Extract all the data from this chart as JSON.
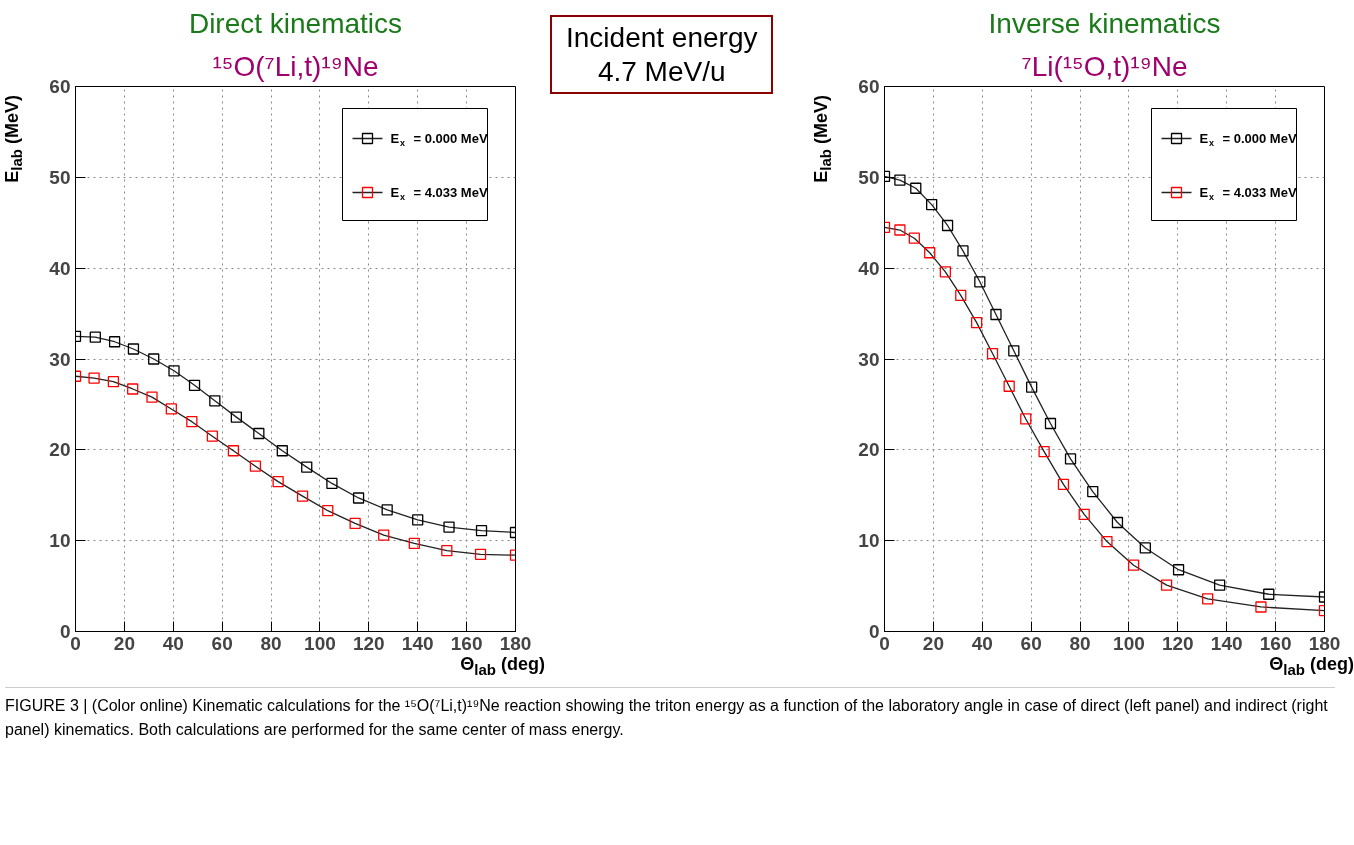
{
  "chart_data": [
    {
      "type": "line",
      "title": "Direct kinematics",
      "subtitle": "¹⁵O(⁷Li,t)¹⁹Ne",
      "xlabel": "Θ$_{lab}$ (deg)",
      "ylabel": "E$_{lab}$ (MeV)",
      "xlim": [
        0,
        180
      ],
      "ylim": [
        0,
        60
      ],
      "xticks": [
        0,
        20,
        40,
        60,
        80,
        100,
        120,
        140,
        160,
        180
      ],
      "yticks": [
        0,
        10,
        20,
        30,
        40,
        50,
        60
      ],
      "grid": true,
      "legend": "top right",
      "marker": "square",
      "line_style": "solid",
      "annotations": [
        "Incident energy\n4.7 MeV/u"
      ],
      "series": [
        {
          "name": "E$_{x}$ = 0.000 MeV",
          "color": "#000000",
          "x": [
            0,
            8.1,
            16.0,
            23.7,
            32.0,
            40.3,
            48.7,
            57.0,
            65.8,
            75.0,
            84.6,
            94.6,
            104.9,
            115.8,
            127.5,
            140.0,
            152.8,
            166.1,
            180
          ],
          "values": [
            32.5,
            32.4,
            31.9,
            31.1,
            30.0,
            28.7,
            27.1,
            25.4,
            23.6,
            21.8,
            19.9,
            18.1,
            16.3,
            14.7,
            13.4,
            12.3,
            11.5,
            11.1,
            10.9
          ]
        },
        {
          "name": "E$_{x}$ = 4.033 MeV",
          "color": "#ff0000",
          "x": [
            0,
            7.6,
            15.5,
            23.4,
            31.3,
            39.2,
            47.6,
            56.0,
            64.6,
            73.6,
            82.9,
            92.9,
            103.2,
            114.4,
            126.1,
            138.6,
            151.9,
            165.7,
            180
          ],
          "values": [
            28.1,
            27.9,
            27.5,
            26.7,
            25.8,
            24.5,
            23.1,
            21.5,
            19.9,
            18.2,
            16.5,
            14.9,
            13.3,
            11.9,
            10.6,
            9.7,
            8.9,
            8.5,
            8.4
          ]
        }
      ]
    },
    {
      "type": "line",
      "title": "Inverse kinematics",
      "subtitle": "⁷Li(¹⁵O,t)¹⁹Ne",
      "xlabel": "Θ$_{lab}$ (deg)",
      "ylabel": "E$_{lab}$ (MeV)",
      "xlim": [
        0,
        180
      ],
      "ylim": [
        0,
        60
      ],
      "xticks": [
        0,
        20,
        40,
        60,
        80,
        100,
        120,
        140,
        160,
        180
      ],
      "yticks": [
        0,
        10,
        20,
        30,
        40,
        50,
        60
      ],
      "grid": true,
      "legend": "top right",
      "marker": "square",
      "line_style": "solid",
      "annotations": [
        "FIGURE 3 | (Color online) Kinematic calculations for the ¹⁵O(⁷Li,t)¹⁹Ne reaction showing the triton energy as a function of the laboratory angle in case of direct (left panel) and indirect (right panel) kinematics. Both calculations are performed for the same center of mass energy."
      ],
      "series": [
        {
          "name": "E$_{x}$ = 0.000 MeV",
          "color": "#000000",
          "x": [
            0,
            6.3,
            12.8,
            19.3,
            25.8,
            32.1,
            39.0,
            45.6,
            52.9,
            60.2,
            67.9,
            76.1,
            85.2,
            95.3,
            106.7,
            120.3,
            137.1,
            157.2,
            180
          ],
          "values": [
            50.1,
            49.7,
            48.8,
            47.0,
            44.7,
            41.9,
            38.5,
            34.9,
            30.9,
            26.9,
            22.9,
            19.0,
            15.4,
            12.0,
            9.2,
            6.8,
            5.1,
            4.1,
            3.8
          ]
        },
        {
          "name": "E$_{x}$ = 4.033 MeV",
          "color": "#ff0000",
          "x": [
            0,
            6.3,
            12.2,
            18.5,
            24.9,
            31.2,
            37.7,
            44.2,
            51.0,
            57.8,
            65.3,
            73.2,
            81.7,
            91.0,
            101.9,
            115.4,
            132.2,
            154.0,
            180
          ],
          "values": [
            44.5,
            44.2,
            43.3,
            41.7,
            39.6,
            37.0,
            34.0,
            30.6,
            27.0,
            23.4,
            19.8,
            16.2,
            12.9,
            9.9,
            7.3,
            5.1,
            3.6,
            2.7,
            2.3
          ]
        }
      ]
    }
  ]
}
